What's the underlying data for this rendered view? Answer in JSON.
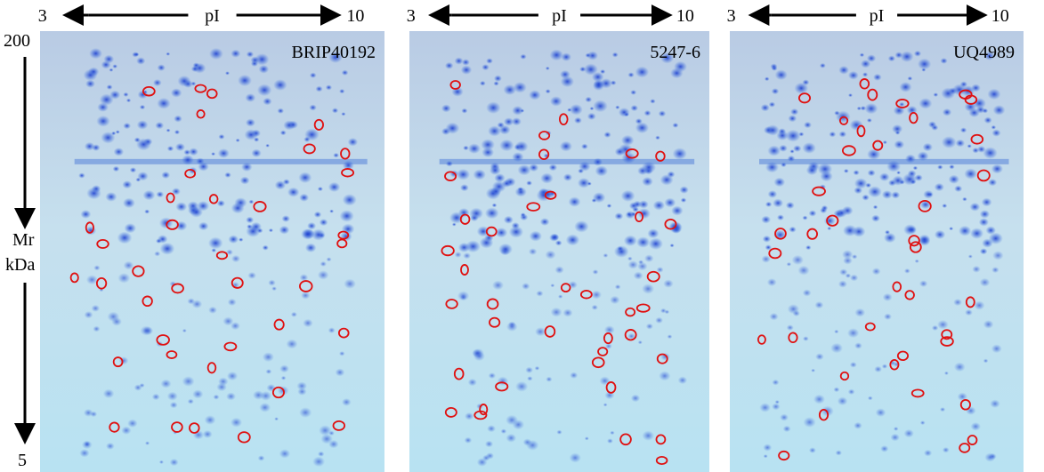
{
  "panels": [
    {
      "ph_min": "3",
      "axis_label": "pI",
      "ph_max": "10",
      "name": "BRIP40192"
    },
    {
      "ph_min": "3",
      "axis_label": "pI",
      "ph_max": "10",
      "name": "5247-6"
    },
    {
      "ph_min": "3",
      "axis_label": "pI",
      "ph_max": "10",
      "name": "UQ4989"
    }
  ],
  "mr_axis": {
    "top": "200",
    "label_line1": "Mr",
    "label_line2": "kDa",
    "bottom": "5"
  }
}
